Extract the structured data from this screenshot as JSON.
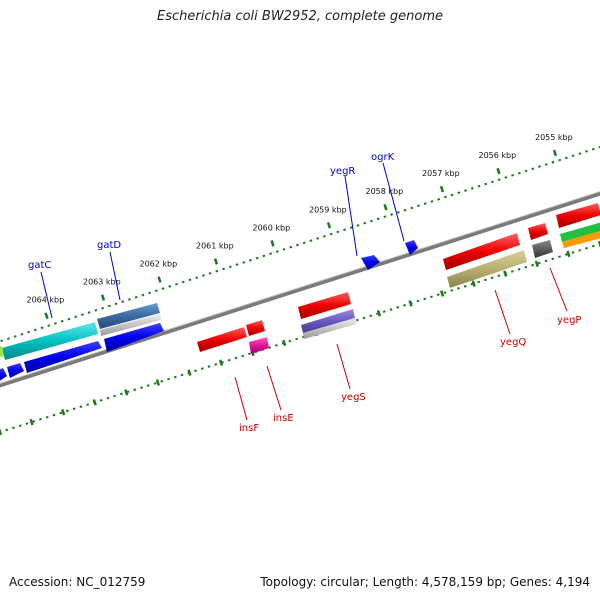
{
  "title": "Escherichia coli BW2952, complete genome",
  "footer": {
    "accession": "Accession: NC_012759",
    "topology": "Topology: circular; Length: 4,578,159 bp; Genes: 4,194"
  },
  "colors": {
    "backbone": "#7a7a7a",
    "tick": "#1a7a1a",
    "forward_label": "#0000cc",
    "reverse_label": "#cc0000"
  },
  "ticks": [
    {
      "kbp": 2055,
      "label": "2055 kbp"
    },
    {
      "kbp": 2056,
      "label": "2056 kbp"
    },
    {
      "kbp": 2057,
      "label": "2057 kbp"
    },
    {
      "kbp": 2058,
      "label": "2058 kbp"
    },
    {
      "kbp": 2059,
      "label": "2059 kbp"
    },
    {
      "kbp": 2060,
      "label": "2060 kbp"
    },
    {
      "kbp": 2061,
      "label": "2061 kbp"
    },
    {
      "kbp": 2062,
      "label": "2062 kbp"
    },
    {
      "kbp": 2063,
      "label": "2063 kbp"
    },
    {
      "kbp": 2064,
      "label": "2064 kbp"
    }
  ],
  "genes": {
    "forward": [
      {
        "name": "gatC",
        "color": "#00c8c8"
      },
      {
        "name": "gatD",
        "color": "#4a7ab0"
      },
      {
        "name": "yegR",
        "color": "#0000ee"
      },
      {
        "name": "ogrK",
        "color": "#0000ee"
      }
    ],
    "reverse": [
      {
        "name": "insF",
        "color": "#ee0000"
      },
      {
        "name": "insE",
        "color": "#e0149a"
      },
      {
        "name": "yegS",
        "color": "#7060c0"
      },
      {
        "name": "yegQ",
        "color": "#b8b070"
      },
      {
        "name": "yegP",
        "color": "#555555"
      }
    ]
  }
}
